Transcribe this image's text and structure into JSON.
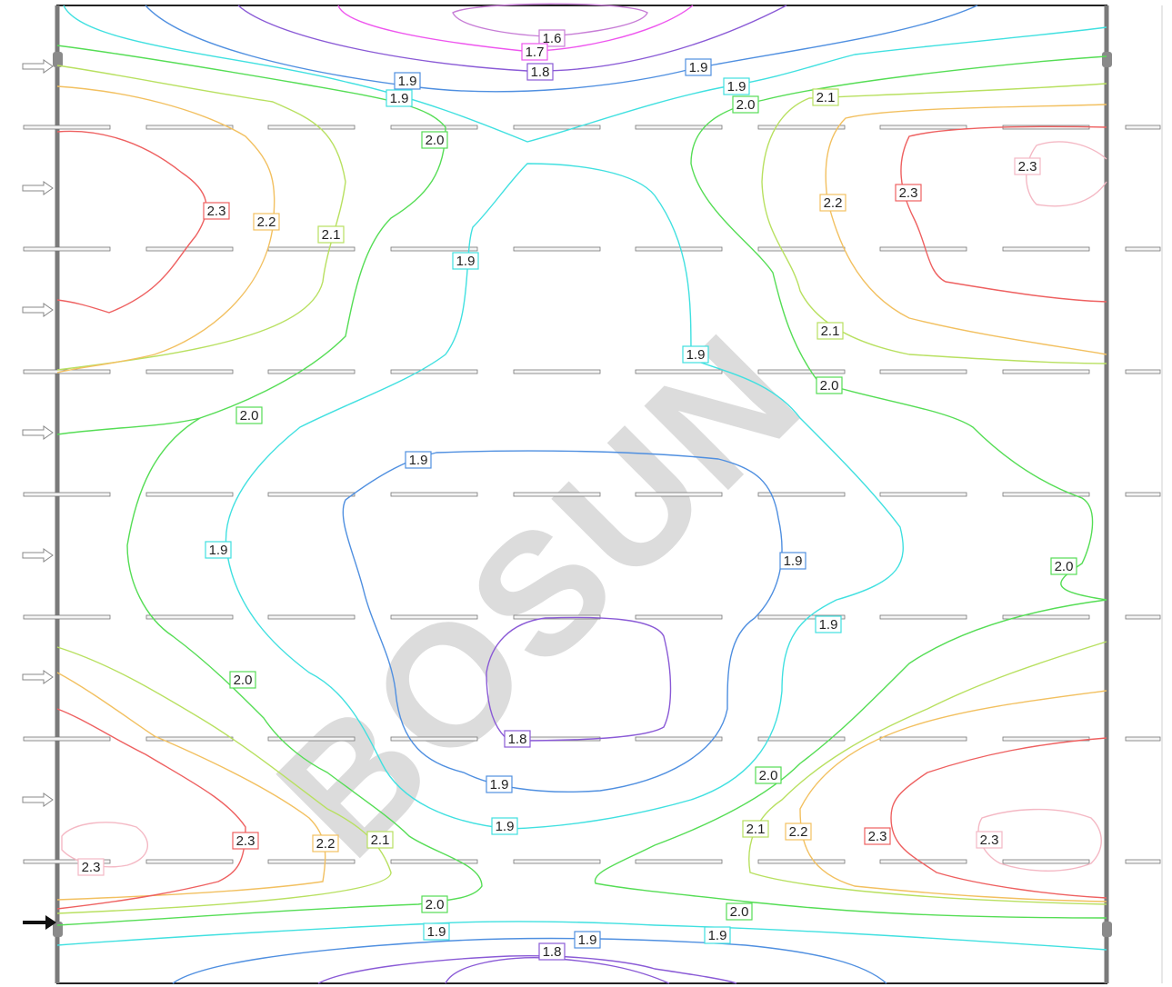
{
  "watermark": "BOSUN",
  "colors": {
    "1.6": "#c77dd6",
    "1.7": "#ee55ee",
    "1.8": "#8a5ad6",
    "1.9_blue": "#4f8fe0",
    "1.9_cyan": "#40e0e0",
    "2.0": "#55dd55",
    "2.1": "#b8e060",
    "2.2": "#f2c060",
    "2.3": "#ee6060",
    "2.4": "#f4b8c4"
  },
  "contour_labels": [
    {
      "text": "1.6",
      "level": "1.6"
    },
    {
      "text": "1.7",
      "level": "1.7"
    },
    {
      "text": "1.8",
      "level": "1.8"
    },
    {
      "text": "1.9",
      "level": "1.9_blue"
    },
    {
      "text": "1.9",
      "level": "1.9_cyan"
    },
    {
      "text": "1.9",
      "level": "1.9_blue"
    },
    {
      "text": "1.9",
      "level": "1.9_cyan"
    },
    {
      "text": "2.0",
      "level": "2.0"
    },
    {
      "text": "2.1",
      "level": "2.1"
    },
    {
      "text": "2.0",
      "level": "2.0"
    },
    {
      "text": "2.3",
      "level": "2.4"
    },
    {
      "text": "2.3",
      "level": "2.3"
    },
    {
      "text": "2.2",
      "level": "2.2"
    },
    {
      "text": "2.3",
      "level": "2.3"
    },
    {
      "text": "2.2",
      "level": "2.2"
    },
    {
      "text": "2.1",
      "level": "2.1"
    },
    {
      "text": "1.9",
      "level": "1.9_cyan"
    },
    {
      "text": "1.9",
      "level": "1.9_cyan"
    },
    {
      "text": "2.1",
      "level": "2.1"
    },
    {
      "text": "2.0",
      "level": "2.0"
    },
    {
      "text": "2.0",
      "level": "2.0"
    },
    {
      "text": "1.9",
      "level": "1.9_blue"
    },
    {
      "text": "1.9",
      "level": "1.9_cyan"
    },
    {
      "text": "1.9",
      "level": "1.9_blue"
    },
    {
      "text": "2.0",
      "level": "2.0"
    },
    {
      "text": "1.9",
      "level": "1.9_cyan"
    },
    {
      "text": "2.0",
      "level": "2.0"
    },
    {
      "text": "1.8",
      "level": "1.8"
    },
    {
      "text": "1.9",
      "level": "1.9_blue"
    },
    {
      "text": "2.0",
      "level": "2.0"
    },
    {
      "text": "1.9",
      "level": "1.9_cyan"
    },
    {
      "text": "2.1",
      "level": "2.1"
    },
    {
      "text": "2.2",
      "level": "2.2"
    },
    {
      "text": "2.3",
      "level": "2.3"
    },
    {
      "text": "2.3",
      "level": "2.4"
    },
    {
      "text": "2.3",
      "level": "2.3"
    },
    {
      "text": "2.2",
      "level": "2.2"
    },
    {
      "text": "2.1",
      "level": "2.1"
    },
    {
      "text": "2.3",
      "level": "2.4"
    },
    {
      "text": "2.0",
      "level": "2.0"
    },
    {
      "text": "2.0",
      "level": "2.0"
    },
    {
      "text": "1.9",
      "level": "1.9_cyan"
    },
    {
      "text": "1.8",
      "level": "1.8"
    },
    {
      "text": "1.9",
      "level": "1.9_blue"
    },
    {
      "text": "1.9",
      "level": "1.9_cyan"
    }
  ]
}
